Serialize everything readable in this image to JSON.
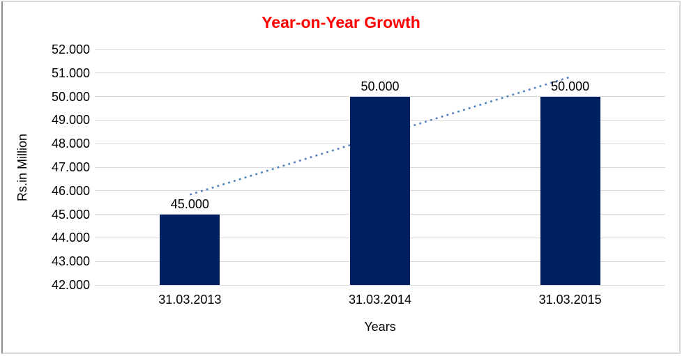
{
  "chart_data": {
    "type": "bar",
    "title": "Year-on-Year Growth",
    "title_color": "#fe0000",
    "xlabel": "Years",
    "ylabel": "Rs.in Million",
    "categories": [
      "31.03.2013",
      "31.03.2014",
      "31.03.2015"
    ],
    "values": [
      45000,
      50000,
      50000
    ],
    "value_labels": [
      "45.000",
      "50.000",
      "50.000"
    ],
    "ylim": [
      42000,
      52000
    ],
    "ytick_step": 1000,
    "ytick_labels": [
      "52.000",
      "51.000",
      "50.000",
      "49.000",
      "48.000",
      "47.000",
      "46.000",
      "45.000",
      "44.000",
      "43.000",
      "42.000"
    ],
    "grid": "horizontal",
    "legend": "none",
    "bar_color": "#002060",
    "gridline_color": "#d9d9d9",
    "text_color": "#000000",
    "trendline": {
      "type": "linear",
      "style": "dotted",
      "color": "#4f81bd",
      "start_value": 45833,
      "end_value": 50833
    }
  }
}
